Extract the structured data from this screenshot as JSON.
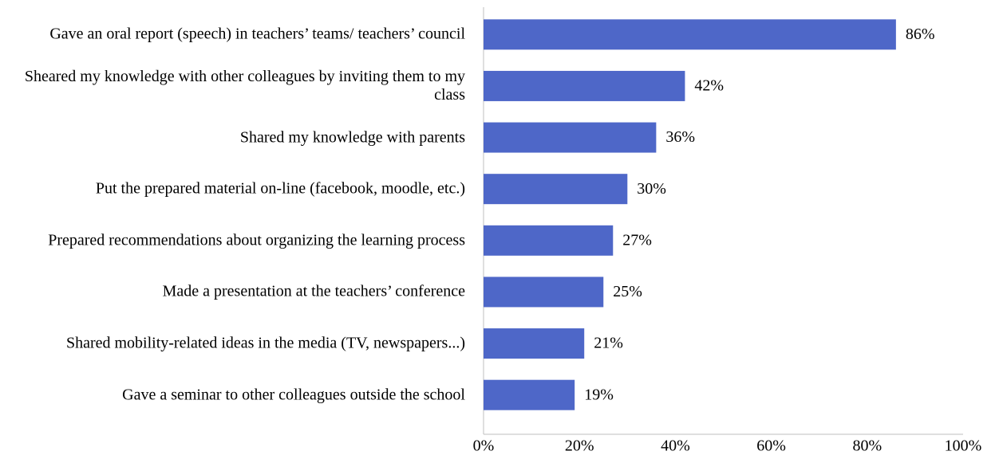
{
  "chart_data": {
    "type": "hbar",
    "categories": [
      "Gave an oral report (speech) in teachers’ teams/ teachers’ council",
      "Sheared my knowledge with other colleagues by inviting them to my class",
      "Shared my knowledge with parents",
      "Put the prepared material on-line (facebook, moodle, etc.)",
      "Prepared recommendations about organizing the learning process",
      "Made a presentation at the teachers’ conference",
      "Shared mobility-related ideas in the media (TV, newspapers...)",
      "Gave a seminar to other colleagues outside the school"
    ],
    "values": [
      86,
      42,
      36,
      30,
      27,
      25,
      21,
      19
    ],
    "value_labels": [
      "86%",
      "42%",
      "36%",
      "30%",
      "27%",
      "25%",
      "21%",
      "19%"
    ],
    "color": "#4e67c8",
    "xlim": [
      0,
      100
    ],
    "xticks": [
      {
        "value": 0,
        "label": "0%"
      },
      {
        "value": 20,
        "label": "20%"
      },
      {
        "value": 40,
        "label": "40%"
      },
      {
        "value": 60,
        "label": "60%"
      },
      {
        "value": 80,
        "label": "80%"
      },
      {
        "value": 100,
        "label": "100%"
      }
    ],
    "grid": false
  }
}
